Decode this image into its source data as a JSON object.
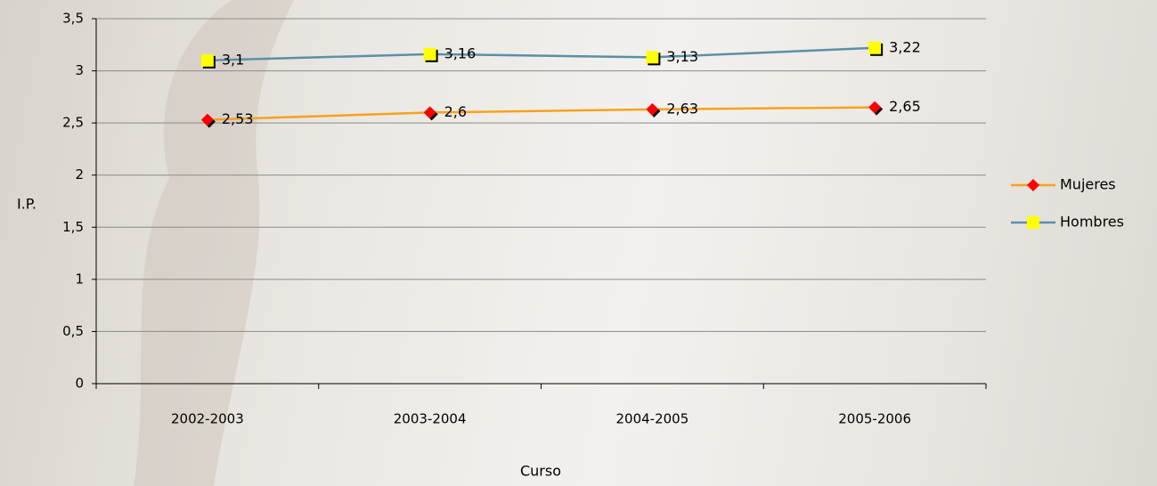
{
  "chart_data": {
    "type": "line",
    "x_label": "Curso",
    "y_label": "I.P.",
    "categories": [
      "2002-2003",
      "2003-2004",
      "2004-2005",
      "2005-2006"
    ],
    "series": [
      {
        "name": "Mujeres",
        "color": "#f7a21b",
        "marker": "diamond",
        "marker_color": "#ff0000",
        "values": [
          2.53,
          2.6,
          2.63,
          2.65
        ],
        "value_labels": [
          "2,53",
          "2,6",
          "2,63",
          "2,65"
        ]
      },
      {
        "name": "Hombres",
        "color": "#5b8fa8",
        "marker": "square",
        "marker_color": "#ffff00",
        "values": [
          3.1,
          3.16,
          3.13,
          3.22
        ],
        "value_labels": [
          "3,1",
          "3,16",
          "3,13",
          "3,22"
        ]
      }
    ],
    "ylim": [
      0,
      3.5
    ],
    "yticks": [
      0,
      {
        "value": 0.5,
        "label": "0,5"
      },
      1,
      {
        "value": 1.5,
        "label": "1,5"
      },
      2,
      {
        "value": 2.5,
        "label": "2,5"
      },
      3,
      {
        "value": 3.5,
        "label": "3,5"
      }
    ],
    "grid": true,
    "legend": "right"
  }
}
